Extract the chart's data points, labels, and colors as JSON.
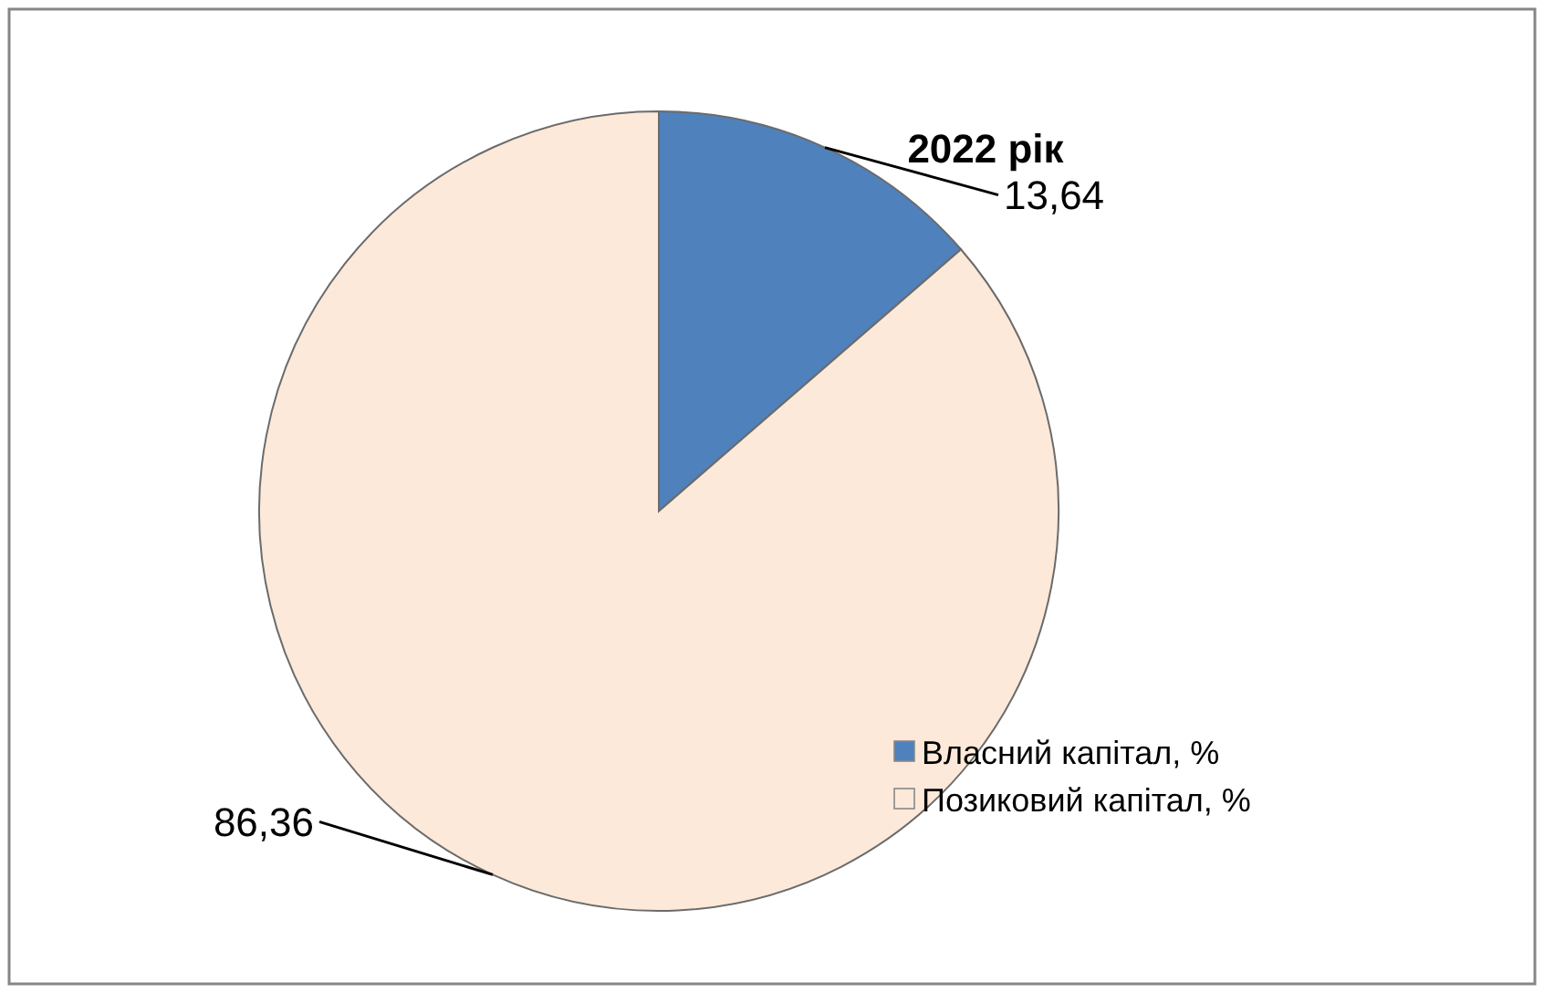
{
  "chart_data": {
    "type": "pie",
    "title": "2022 рік",
    "categories": [
      "Власний капітал, %",
      "Позиковий капітал, %"
    ],
    "values": [
      13.64,
      86.36
    ],
    "colors": [
      "#4f81bd",
      "#fde9d9"
    ],
    "value_labels": [
      "13,64",
      "86,36"
    ],
    "legend": "bottom right"
  }
}
